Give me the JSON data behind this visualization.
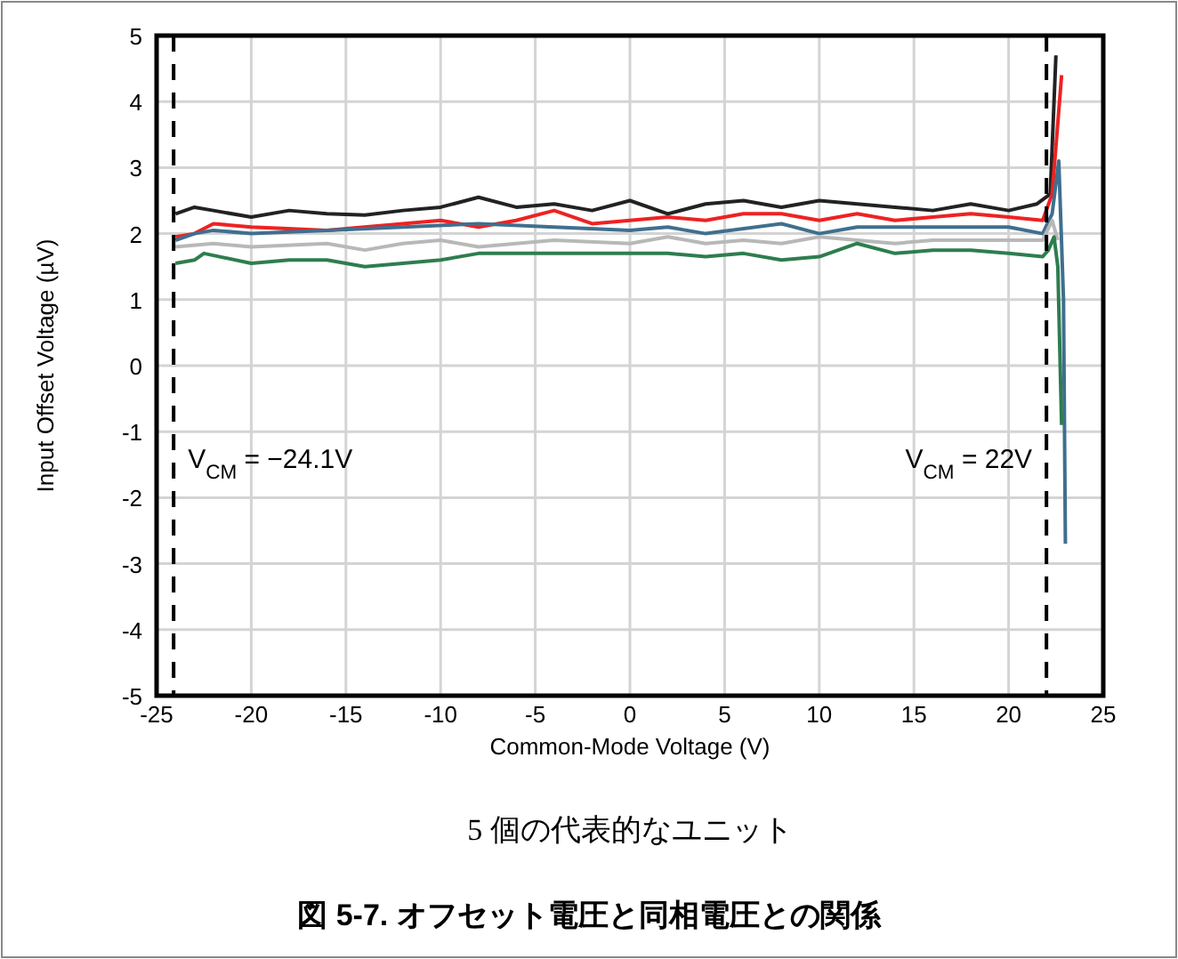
{
  "chart_data": {
    "type": "line",
    "title": "図 5-7. オフセット電圧と同相電圧との関係",
    "subtitle": "5 個の代表的なユニット",
    "xlabel": "Common-Mode Voltage (V)",
    "ylabel": "Input Offset Voltage (µV)",
    "xlim": [
      -25,
      25
    ],
    "xticks": [
      -25,
      -20,
      -15,
      -10,
      -5,
      0,
      5,
      10,
      15,
      20,
      25
    ],
    "ylim": [
      -5,
      5
    ],
    "yticks": [
      -5,
      -4,
      -3,
      -2,
      -1,
      0,
      1,
      2,
      3,
      4,
      5
    ],
    "grid": true,
    "line_style": "solid",
    "series": [
      {
        "color": "#222222",
        "x": [
          -24,
          -23,
          -22,
          -20,
          -18,
          -16,
          -14,
          -12,
          -10,
          -8,
          -6,
          -4,
          -2,
          0,
          2,
          4,
          6,
          8,
          10,
          12,
          14,
          16,
          18,
          20,
          21.5,
          22.2,
          22.5
        ],
        "values": [
          2.3,
          2.4,
          2.35,
          2.25,
          2.35,
          2.3,
          2.28,
          2.35,
          2.4,
          2.55,
          2.4,
          2.45,
          2.35,
          2.5,
          2.3,
          2.45,
          2.5,
          2.4,
          2.5,
          2.45,
          2.4,
          2.35,
          2.45,
          2.35,
          2.45,
          2.6,
          4.7
        ]
      },
      {
        "color": "#ee2222",
        "x": [
          -24,
          -23,
          -22,
          -20,
          -16,
          -12,
          -10,
          -8,
          -6,
          -4,
          -2,
          0,
          2,
          4,
          6,
          8,
          10,
          12,
          14,
          16,
          18,
          20,
          21.8,
          22.3,
          22.8
        ],
        "values": [
          1.95,
          2.0,
          2.15,
          2.1,
          2.05,
          2.15,
          2.2,
          2.1,
          2.2,
          2.35,
          2.15,
          2.2,
          2.25,
          2.2,
          2.3,
          2.3,
          2.2,
          2.3,
          2.2,
          2.25,
          2.3,
          2.25,
          2.2,
          2.6,
          4.4
        ]
      },
      {
        "color": "#3f6f8f",
        "x": [
          -24,
          -23,
          -22,
          -20,
          -16,
          -12,
          -8,
          -4,
          0,
          2,
          4,
          8,
          10,
          12,
          16,
          20,
          21.8,
          22.3,
          22.65,
          22.9,
          23.0
        ],
        "values": [
          1.9,
          2.0,
          2.05,
          2.0,
          2.05,
          2.1,
          2.15,
          2.1,
          2.05,
          2.1,
          2.0,
          2.15,
          2.0,
          2.1,
          2.1,
          2.1,
          2.0,
          2.3,
          3.1,
          1.0,
          -2.7
        ]
      },
      {
        "color": "#b8b8b8",
        "x": [
          -24,
          -22,
          -20,
          -16,
          -14,
          -12,
          -10,
          -8,
          -4,
          0,
          2,
          4,
          6,
          8,
          10,
          12,
          14,
          16,
          20,
          21.8,
          22.3,
          22.6
        ],
        "values": [
          1.8,
          1.85,
          1.8,
          1.85,
          1.75,
          1.85,
          1.9,
          1.8,
          1.9,
          1.85,
          1.95,
          1.85,
          1.9,
          1.85,
          1.95,
          1.9,
          1.85,
          1.9,
          1.9,
          1.9,
          2.2,
          1.9
        ]
      },
      {
        "color": "#2e7d4f",
        "x": [
          -24,
          -23,
          -22.5,
          -20,
          -18,
          -16,
          -14,
          -12,
          -10,
          -8,
          -4,
          0,
          2,
          4,
          6,
          8,
          10,
          12,
          14,
          16,
          18,
          20,
          21.8,
          22.1,
          22.4,
          22.6,
          22.8
        ],
        "values": [
          1.55,
          1.6,
          1.7,
          1.55,
          1.6,
          1.6,
          1.5,
          1.55,
          1.6,
          1.7,
          1.7,
          1.7,
          1.7,
          1.65,
          1.7,
          1.6,
          1.65,
          1.85,
          1.7,
          1.75,
          1.75,
          1.7,
          1.65,
          1.75,
          1.95,
          1.5,
          -0.9
        ]
      }
    ],
    "ref_lines": [
      {
        "axis": "x",
        "value": -24.1,
        "label": "V$_{CM}$ = −24.1V",
        "color": "#000000",
        "line_style": "dashed"
      },
      {
        "axis": "x",
        "value": 22,
        "label": "V$_{CM}$ = 22V",
        "color": "#000000",
        "line_style": "dashed"
      }
    ]
  }
}
